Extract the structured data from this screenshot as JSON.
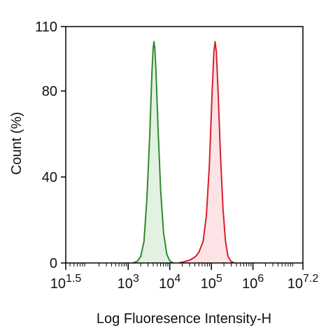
{
  "chart_data": {
    "type": "area",
    "title": "",
    "xlabel": "Log Fluoresence Intensity-H",
    "ylabel": "Count  (%)",
    "x_scale": "log10",
    "xlim": [
      1.5,
      7.2
    ],
    "ylim": [
      0,
      110
    ],
    "x_ticks": [
      {
        "base": "10",
        "exp": "1.5",
        "value": 1.5
      },
      {
        "base": "10",
        "exp": "3",
        "value": 3
      },
      {
        "base": "10",
        "exp": "4",
        "value": 4
      },
      {
        "base": "10",
        "exp": "5",
        "value": 5
      },
      {
        "base": "10",
        "exp": "6",
        "value": 6
      },
      {
        "base": "10",
        "exp": "7.2",
        "value": 7.2
      }
    ],
    "y_ticks": [
      {
        "label": "0",
        "value": 0
      },
      {
        "label": "40",
        "value": 40
      },
      {
        "label": "80",
        "value": 80
      },
      {
        "label": "110",
        "value": 110
      }
    ],
    "series": [
      {
        "stroke": "#2e8b2e",
        "fill": "#e3f1e3",
        "points": [
          [
            3.12,
            0
          ],
          [
            3.22,
            0.8
          ],
          [
            3.3,
            3
          ],
          [
            3.38,
            10
          ],
          [
            3.45,
            30
          ],
          [
            3.52,
            60
          ],
          [
            3.57,
            88
          ],
          [
            3.6,
            100
          ],
          [
            3.62,
            103
          ],
          [
            3.64,
            100
          ],
          [
            3.67,
            88
          ],
          [
            3.72,
            62
          ],
          [
            3.78,
            34
          ],
          [
            3.85,
            14
          ],
          [
            3.93,
            4
          ],
          [
            4.0,
            1
          ],
          [
            4.08,
            0
          ]
        ]
      },
      {
        "stroke": "#d9202c",
        "fill": "#fbe3e6",
        "points": [
          [
            4.22,
            0
          ],
          [
            4.35,
            0.6
          ],
          [
            4.5,
            1.5
          ],
          [
            4.62,
            3
          ],
          [
            4.7,
            5
          ],
          [
            4.8,
            10
          ],
          [
            4.88,
            22
          ],
          [
            4.95,
            45
          ],
          [
            5.02,
            80
          ],
          [
            5.06,
            98
          ],
          [
            5.09,
            103
          ],
          [
            5.12,
            98
          ],
          [
            5.16,
            80
          ],
          [
            5.22,
            50
          ],
          [
            5.28,
            25
          ],
          [
            5.34,
            10
          ],
          [
            5.4,
            3
          ],
          [
            5.47,
            0.8
          ],
          [
            5.55,
            0
          ]
        ]
      }
    ],
    "grid": false,
    "legend": "none"
  }
}
